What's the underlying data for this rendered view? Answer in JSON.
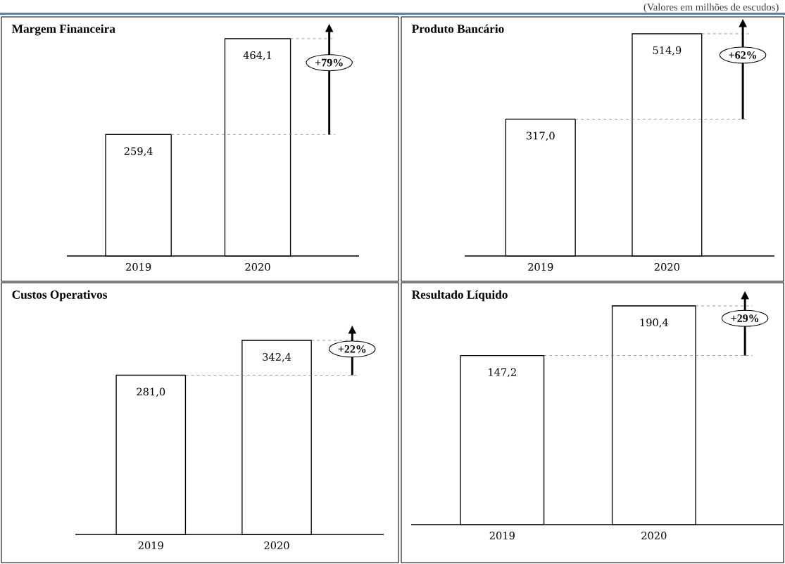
{
  "chart_data": [
    {
      "type": "bar",
      "title": "Margem Financeira",
      "categories": [
        "2019",
        "2020"
      ],
      "values": [
        259.4,
        464.1
      ],
      "color": "#ffffff",
      "value_labels": [
        "259,4",
        "464,1"
      ],
      "ref_lines": [
        {
          "axis": "y",
          "value": 259.4,
          "color": "#7f7f7f",
          "line_style": "dashed"
        },
        {
          "axis": "y",
          "value": 464.1,
          "color": "#7f7f7f",
          "line_style": "dashed"
        }
      ],
      "annotations": [
        "+79%"
      ]
    },
    {
      "type": "bar",
      "title": "Produto Bancário",
      "categories": [
        "2019",
        "2020"
      ],
      "values": [
        317.0,
        514.9
      ],
      "color": "#ffffff",
      "value_labels": [
        "317,0",
        "514,9"
      ],
      "ref_lines": [
        {
          "axis": "y",
          "value": 317.0,
          "color": "#7f7f7f",
          "line_style": "dashed"
        },
        {
          "axis": "y",
          "value": 514.9,
          "color": "#7f7f7f",
          "line_style": "dashed"
        }
      ],
      "annotations": [
        "+62%",
        "(Valores em milhões de escudos)"
      ]
    },
    {
      "type": "bar",
      "title": "Custos Operativos",
      "categories": [
        "2019",
        "2020"
      ],
      "values": [
        281.0,
        342.4
      ],
      "color": "#ffffff",
      "value_labels": [
        "281,0",
        "342,4"
      ],
      "ref_lines": [
        {
          "axis": "y",
          "value": 281.0,
          "color": "#7f7f7f",
          "line_style": "dashed"
        },
        {
          "axis": "y",
          "value": 342.4,
          "color": "#7f7f7f",
          "line_style": "dashed"
        }
      ],
      "annotations": [
        "+22%"
      ]
    },
    {
      "type": "bar",
      "title": "Resultado Líquido",
      "categories": [
        "2019",
        "2020"
      ],
      "values": [
        147.2,
        190.4
      ],
      "color": "#ffffff",
      "value_labels": [
        "147,2",
        "190,4"
      ],
      "ref_lines": [
        {
          "axis": "y",
          "value": 147.2,
          "color": "#7f7f7f",
          "line_style": "dashed"
        },
        {
          "axis": "y",
          "value": 190.4,
          "color": "#7f7f7f",
          "line_style": "dashed"
        }
      ],
      "annotations": [
        "+29%"
      ]
    }
  ]
}
